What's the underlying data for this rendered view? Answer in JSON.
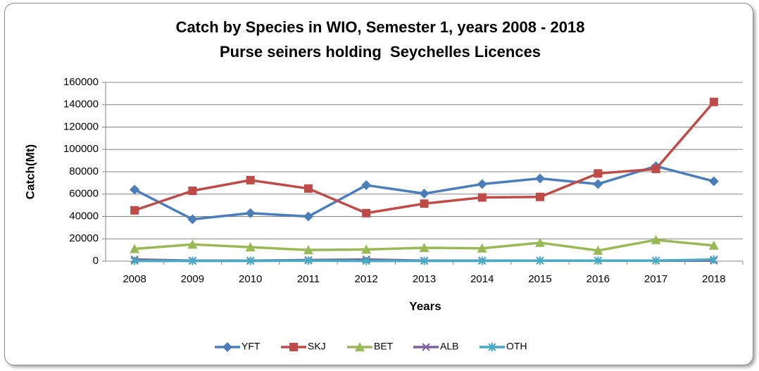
{
  "chart_data": {
    "type": "line",
    "title": "Catch by Species in WIO, Semester 1, years 2008 - 2018",
    "subtitle": "Purse seiners holding  Seychelles Licences",
    "x_label": "Years",
    "y_label": "Catch(Mt)",
    "categories": [
      "2008",
      "2009",
      "2010",
      "2011",
      "2012",
      "2013",
      "2014",
      "2015",
      "2016",
      "2017",
      "2018"
    ],
    "series": [
      {
        "name": "YFT",
        "color": "#4a7ebb",
        "marker": "diamond",
        "values": [
          64000,
          37500,
          43000,
          40000,
          68000,
          60500,
          69000,
          74000,
          69000,
          85000,
          71500
        ]
      },
      {
        "name": "SKJ",
        "color": "#be4b48",
        "marker": "square",
        "values": [
          45500,
          63000,
          72500,
          65000,
          43000,
          51500,
          57000,
          57500,
          78500,
          82500,
          142500
        ]
      },
      {
        "name": "BET",
        "color": "#98b954",
        "marker": "triangle",
        "values": [
          11000,
          15000,
          12500,
          10000,
          10500,
          12000,
          11500,
          16500,
          9500,
          19000,
          14000
        ]
      },
      {
        "name": "ALB",
        "color": "#7d60a0",
        "marker": "x",
        "values": [
          1500,
          500,
          500,
          1000,
          1500,
          500,
          500,
          500,
          500,
          500,
          500
        ]
      },
      {
        "name": "OTH",
        "color": "#46aac5",
        "marker": "star",
        "values": [
          200,
          200,
          200,
          500,
          200,
          200,
          300,
          500,
          500,
          500,
          1500
        ]
      }
    ],
    "ylim": [
      0,
      160000
    ],
    "yticks": [
      0,
      20000,
      40000,
      60000,
      80000,
      100000,
      120000,
      140000,
      160000
    ],
    "grid": true,
    "legend": "bottom"
  }
}
